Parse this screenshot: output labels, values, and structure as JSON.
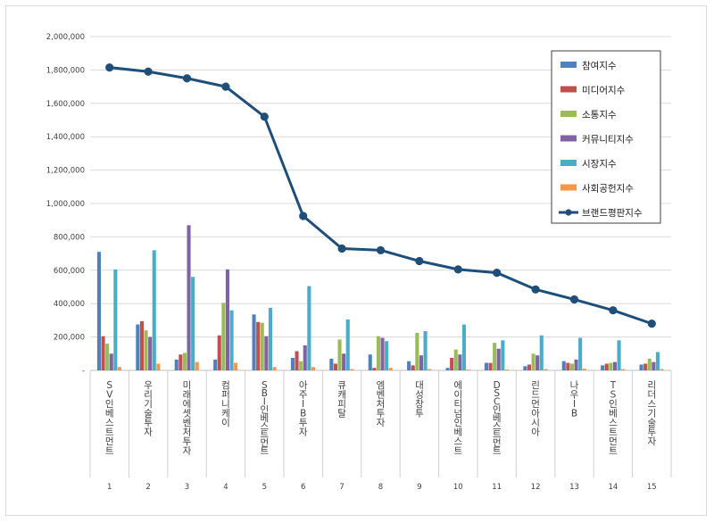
{
  "chart_data": {
    "type": "bar",
    "title": "",
    "xlabel": "",
    "ylabel": "",
    "ylim": [
      0,
      2000000
    ],
    "yticks": [
      "-",
      "200,000",
      "400,000",
      "600,000",
      "800,000",
      "1,000,000",
      "1,200,000",
      "1,400,000",
      "1,600,000",
      "1,800,000",
      "2,000,000"
    ],
    "grid": true,
    "legend_position": "top-right",
    "ranks": [
      "1",
      "2",
      "3",
      "4",
      "5",
      "6",
      "7",
      "8",
      "9",
      "10",
      "11",
      "12",
      "13",
      "14",
      "15"
    ],
    "categories": [
      "SV인베스트먼트",
      "우리기술투자",
      "미래에셋벤처투자",
      "컴퍼니케이",
      "SBI인베스트먼트",
      "아주IB투자",
      "큐캐피탈",
      "엠벤처투자",
      "대성창투",
      "에이티넘인베스트",
      "DSC인베스트먼트",
      "린드먼아시아",
      "나우IB",
      "TS인베스트먼트",
      "리더스기술투자"
    ],
    "series": [
      {
        "name": "참여지수",
        "color": "#4f81bd",
        "values": [
          710000,
          275000,
          65000,
          65000,
          335000,
          75000,
          70000,
          95000,
          55000,
          15000,
          45000,
          25000,
          55000,
          30000,
          35000
        ]
      },
      {
        "name": "미디어지수",
        "color": "#c0504d",
        "values": [
          205000,
          295000,
          95000,
          210000,
          290000,
          115000,
          40000,
          15000,
          30000,
          75000,
          45000,
          35000,
          45000,
          40000,
          40000
        ]
      },
      {
        "name": "소통지수",
        "color": "#9bbb59",
        "values": [
          160000,
          240000,
          105000,
          405000,
          285000,
          55000,
          185000,
          205000,
          225000,
          125000,
          165000,
          100000,
          40000,
          45000,
          70000
        ]
      },
      {
        "name": "커뮤니티지수",
        "color": "#8064a2",
        "values": [
          100000,
          200000,
          870000,
          605000,
          205000,
          150000,
          100000,
          195000,
          90000,
          95000,
          130000,
          90000,
          65000,
          50000,
          50000
        ]
      },
      {
        "name": "시장지수",
        "color": "#4bacc6",
        "values": [
          605000,
          720000,
          560000,
          360000,
          375000,
          505000,
          305000,
          175000,
          235000,
          275000,
          180000,
          210000,
          195000,
          180000,
          110000
        ]
      },
      {
        "name": "사회공헌지수",
        "color": "#f79646",
        "values": [
          20000,
          40000,
          50000,
          45000,
          20000,
          20000,
          8000,
          15000,
          8000,
          5000,
          5000,
          8000,
          10000,
          8000,
          8000
        ]
      }
    ],
    "line_series": {
      "name": "브랜드평판지수",
      "color": "#1f4e79",
      "values": [
        1815000,
        1790000,
        1750000,
        1700000,
        1520000,
        925000,
        730000,
        720000,
        655000,
        605000,
        585000,
        485000,
        425000,
        360000,
        280000
      ]
    }
  }
}
